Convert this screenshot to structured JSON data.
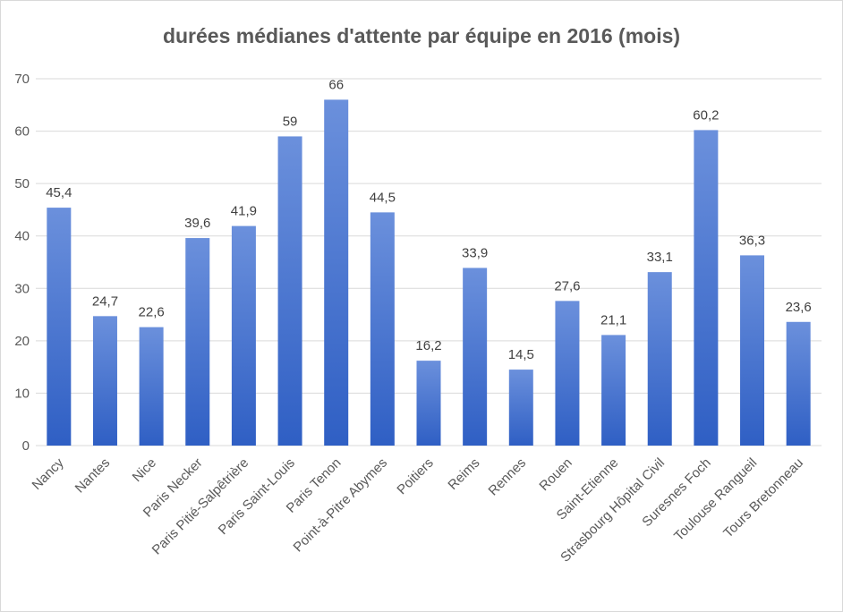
{
  "chart_data": {
    "type": "bar",
    "title": "durées médianes d'attente par équipe en 2016 (mois)",
    "categories": [
      "Nancy",
      "Nantes",
      "Nice",
      "Paris Necker",
      "Paris Pitié-Salpêtrière",
      "Paris Saint-Louis",
      "Paris Tenon",
      "Point-à-Pitre Abymes",
      "Poitiers",
      "Reims",
      "Rennes",
      "Rouen",
      "Saint-Etienne",
      "Strasbourg Hôpital Civil",
      "Suresnes Foch",
      "Toulouse Rangueil",
      "Tours Bretonneau"
    ],
    "values": [
      45.4,
      24.7,
      22.6,
      39.6,
      41.9,
      59,
      66,
      44.5,
      16.2,
      33.9,
      14.5,
      27.6,
      21.1,
      33.1,
      60.2,
      36.3,
      23.6
    ],
    "data_labels": [
      "45,4",
      "24,7",
      "22,6",
      "39,6",
      "41,9",
      "59",
      "66",
      "44,5",
      "16,2",
      "33,9",
      "14,5",
      "27,6",
      "21,1",
      "33,1",
      "60,2",
      "36,3",
      "23,6"
    ],
    "yticks": [
      "0",
      "10",
      "20",
      "30",
      "40",
      "50",
      "60",
      "70"
    ],
    "ylim": [
      0,
      70
    ],
    "xlabel": "",
    "ylabel": "",
    "grid": true,
    "legend": "none",
    "bar_color_top": "#6b90dc",
    "bar_color_bottom": "#2f5fc4",
    "grid_color": "#d9d9d9"
  }
}
